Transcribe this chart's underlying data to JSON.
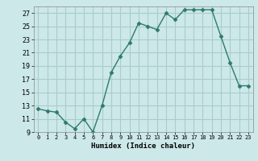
{
  "x": [
    0,
    1,
    2,
    3,
    4,
    5,
    6,
    7,
    8,
    9,
    10,
    11,
    12,
    13,
    14,
    15,
    16,
    17,
    18,
    19,
    20,
    21,
    22,
    23
  ],
  "y": [
    12.5,
    12.2,
    12.0,
    10.5,
    9.5,
    11.0,
    9.0,
    13.0,
    18.0,
    20.5,
    22.5,
    25.5,
    25.0,
    24.5,
    27.0,
    26.0,
    27.5,
    27.5,
    27.5,
    27.5,
    23.5,
    19.5,
    16.0,
    16.0
  ],
  "line_color": "#2d7a6e",
  "marker": "D",
  "background_color": "#cce8e8",
  "grid_color": "#aacccc",
  "xlabel": "Humidex (Indice chaleur)",
  "ylim": [
    9,
    28
  ],
  "xlim": [
    -0.5,
    23.5
  ],
  "yticks": [
    9,
    11,
    13,
    15,
    17,
    19,
    21,
    23,
    25,
    27
  ],
  "xticks": [
    0,
    1,
    2,
    3,
    4,
    5,
    6,
    7,
    8,
    9,
    10,
    11,
    12,
    13,
    14,
    15,
    16,
    17,
    18,
    19,
    20,
    21,
    22,
    23
  ]
}
